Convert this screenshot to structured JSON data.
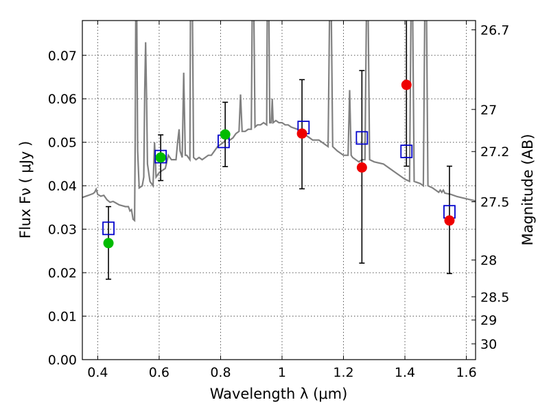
{
  "chart_data": {
    "type": "scatter",
    "xlabel": "Wavelength  λ (μm)",
    "ylabel": "Flux  Fν  ( μJy )",
    "ylabel_right": "Magnitude (AB)",
    "xlim": [
      0.35,
      1.63
    ],
    "ylim": [
      0.0,
      0.078
    ],
    "grid": true,
    "x_ticks": [
      0.4,
      0.6,
      0.8,
      1.0,
      1.2,
      1.4,
      1.6
    ],
    "x_tick_labels": [
      "0.4",
      "0.6",
      "0.8",
      "1",
      "1.2",
      "1.4",
      "1.6"
    ],
    "y_ticks": [
      0.0,
      0.01,
      0.02,
      0.03,
      0.04,
      0.05,
      0.06,
      0.07
    ],
    "y_tick_labels": [
      "0.00",
      "0.01",
      "0.02",
      "0.03",
      "0.04",
      "0.05",
      "0.06",
      "0.07"
    ],
    "right_ticks": [
      26.7,
      27.0,
      27.2,
      27.5,
      28.0,
      28.5,
      29.0,
      30.0
    ],
    "right_tick_labels": [
      "26.7",
      "27",
      "27.2",
      "27.5",
      "28",
      "28.5",
      "29",
      "30"
    ],
    "sed_model": {
      "color": "#808080",
      "points": [
        [
          0.35,
          0.0373
        ],
        [
          0.37,
          0.0378
        ],
        [
          0.385,
          0.0382
        ],
        [
          0.39,
          0.0385
        ],
        [
          0.395,
          0.0392
        ],
        [
          0.4,
          0.038
        ],
        [
          0.41,
          0.0376
        ],
        [
          0.42,
          0.0378
        ],
        [
          0.43,
          0.0368
        ],
        [
          0.44,
          0.0362
        ],
        [
          0.45,
          0.0364
        ],
        [
          0.46,
          0.036
        ],
        [
          0.47,
          0.0356
        ],
        [
          0.48,
          0.0354
        ],
        [
          0.49,
          0.0352
        ],
        [
          0.5,
          0.0352
        ],
        [
          0.505,
          0.0342
        ],
        [
          0.51,
          0.0345
        ],
        [
          0.515,
          0.0323
        ],
        [
          0.52,
          0.032
        ],
        [
          0.522,
          0.05
        ],
        [
          0.524,
          0.082
        ],
        [
          0.527,
          0.082
        ],
        [
          0.53,
          0.048
        ],
        [
          0.535,
          0.0395
        ],
        [
          0.545,
          0.04
        ],
        [
          0.55,
          0.042
        ],
        [
          0.553,
          0.062
        ],
        [
          0.556,
          0.073
        ],
        [
          0.559,
          0.06
        ],
        [
          0.562,
          0.045
        ],
        [
          0.57,
          0.041
        ],
        [
          0.58,
          0.04
        ],
        [
          0.585,
          0.05
        ],
        [
          0.59,
          0.042
        ],
        [
          0.6,
          0.043
        ],
        [
          0.62,
          0.044
        ],
        [
          0.63,
          0.047
        ],
        [
          0.64,
          0.046
        ],
        [
          0.655,
          0.046
        ],
        [
          0.66,
          0.05
        ],
        [
          0.665,
          0.053
        ],
        [
          0.668,
          0.048
        ],
        [
          0.675,
          0.0465
        ],
        [
          0.68,
          0.066
        ],
        [
          0.685,
          0.047
        ],
        [
          0.69,
          0.047
        ],
        [
          0.7,
          0.046
        ],
        [
          0.702,
          0.082
        ],
        [
          0.708,
          0.082
        ],
        [
          0.712,
          0.0465
        ],
        [
          0.72,
          0.046
        ],
        [
          0.73,
          0.0465
        ],
        [
          0.74,
          0.046
        ],
        [
          0.75,
          0.0465
        ],
        [
          0.76,
          0.047
        ],
        [
          0.77,
          0.047
        ],
        [
          0.78,
          0.048
        ],
        [
          0.79,
          0.049
        ],
        [
          0.8,
          0.0495
        ],
        [
          0.81,
          0.05
        ],
        [
          0.82,
          0.051
        ],
        [
          0.83,
          0.0505
        ],
        [
          0.84,
          0.051
        ],
        [
          0.85,
          0.052
        ],
        [
          0.86,
          0.0525
        ],
        [
          0.865,
          0.061
        ],
        [
          0.87,
          0.0525
        ],
        [
          0.88,
          0.0525
        ],
        [
          0.89,
          0.053
        ],
        [
          0.9,
          0.053
        ],
        [
          0.903,
          0.082
        ],
        [
          0.908,
          0.082
        ],
        [
          0.912,
          0.0535
        ],
        [
          0.92,
          0.054
        ],
        [
          0.93,
          0.054
        ],
        [
          0.94,
          0.0545
        ],
        [
          0.95,
          0.054
        ],
        [
          0.952,
          0.082
        ],
        [
          0.957,
          0.082
        ],
        [
          0.96,
          0.0545
        ],
        [
          0.965,
          0.0545
        ],
        [
          0.968,
          0.06
        ],
        [
          0.971,
          0.0545
        ],
        [
          0.98,
          0.055
        ],
        [
          0.99,
          0.0545
        ],
        [
          1.0,
          0.0545
        ],
        [
          1.01,
          0.054
        ],
        [
          1.02,
          0.054
        ],
        [
          1.03,
          0.0535
        ],
        [
          1.05,
          0.053
        ],
        [
          1.07,
          0.052
        ],
        [
          1.09,
          0.051
        ],
        [
          1.1,
          0.0505
        ],
        [
          1.12,
          0.0505
        ],
        [
          1.14,
          0.0495
        ],
        [
          1.15,
          0.049
        ],
        [
          1.155,
          0.082
        ],
        [
          1.16,
          0.082
        ],
        [
          1.165,
          0.049
        ],
        [
          1.18,
          0.048
        ],
        [
          1.2,
          0.047
        ],
        [
          1.215,
          0.047
        ],
        [
          1.22,
          0.062
        ],
        [
          1.225,
          0.047
        ],
        [
          1.23,
          0.0465
        ],
        [
          1.24,
          0.046
        ],
        [
          1.25,
          0.0455
        ],
        [
          1.26,
          0.046
        ],
        [
          1.27,
          0.046
        ],
        [
          1.275,
          0.082
        ],
        [
          1.28,
          0.082
        ],
        [
          1.285,
          0.046
        ],
        [
          1.3,
          0.0455
        ],
        [
          1.33,
          0.045
        ],
        [
          1.35,
          0.044
        ],
        [
          1.37,
          0.043
        ],
        [
          1.39,
          0.042
        ],
        [
          1.4,
          0.0415
        ],
        [
          1.415,
          0.041
        ],
        [
          1.42,
          0.082
        ],
        [
          1.425,
          0.082
        ],
        [
          1.43,
          0.041
        ],
        [
          1.45,
          0.0405
        ],
        [
          1.46,
          0.04
        ],
        [
          1.465,
          0.082
        ],
        [
          1.47,
          0.082
        ],
        [
          1.475,
          0.04
        ],
        [
          1.49,
          0.0395
        ],
        [
          1.5,
          0.039
        ],
        [
          1.51,
          0.0385
        ],
        [
          1.515,
          0.039
        ],
        [
          1.52,
          0.0385
        ],
        [
          1.525,
          0.039
        ],
        [
          1.53,
          0.0383
        ],
        [
          1.55,
          0.038
        ],
        [
          1.57,
          0.0375
        ],
        [
          1.6,
          0.037
        ],
        [
          1.63,
          0.0365
        ]
      ]
    },
    "series": [
      {
        "marker": "square",
        "color": "#0000cc",
        "points": [
          {
            "x": 0.435,
            "y": 0.0302
          },
          {
            "x": 0.605,
            "y": 0.0467
          },
          {
            "x": 0.81,
            "y": 0.0502
          },
          {
            "x": 1.07,
            "y": 0.0534
          },
          {
            "x": 1.26,
            "y": 0.051
          },
          {
            "x": 1.405,
            "y": 0.0479
          },
          {
            "x": 1.545,
            "y": 0.034
          }
        ]
      },
      {
        "marker": "circle",
        "color": "#00bb00",
        "points": [
          {
            "x": 0.435,
            "y": 0.0268,
            "yerr_low": 0.0185,
            "yerr_high": 0.0352
          },
          {
            "x": 0.605,
            "y": 0.0465,
            "yerr_low": 0.0412,
            "yerr_high": 0.0517
          },
          {
            "x": 0.815,
            "y": 0.0518,
            "yerr_low": 0.0444,
            "yerr_high": 0.0592
          }
        ]
      },
      {
        "marker": "circle",
        "color": "#ee0000",
        "points": [
          {
            "x": 1.065,
            "y": 0.052,
            "yerr_low": 0.0393,
            "yerr_high": 0.0644
          },
          {
            "x": 1.26,
            "y": 0.0442,
            "yerr_low": 0.0222,
            "yerr_high": 0.0665
          },
          {
            "x": 1.405,
            "y": 0.0632,
            "yerr_low": 0.0445,
            "yerr_high": 0.08
          },
          {
            "x": 1.545,
            "y": 0.032,
            "yerr_low": 0.0198,
            "yerr_high": 0.0445
          }
        ]
      }
    ]
  }
}
